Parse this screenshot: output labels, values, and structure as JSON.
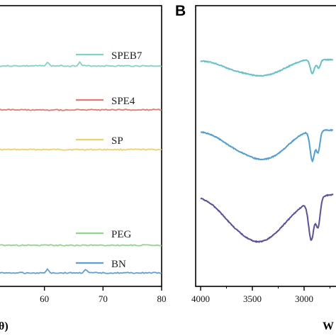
{
  "panel_b_label": "B",
  "axis_title_left_fragment": "θ)",
  "axis_title_right_fragment": "W",
  "colors": {
    "SPEB7": "#7fd3c3",
    "SPE4": "#e07a72",
    "SP": "#f0cf6c",
    "PEG": "#8fd68a",
    "BN": "#5f9fd8",
    "ftir_top": "#66c1c9",
    "ftir_mid": "#4f9fd6",
    "ftir_bottom": "#5a4fa0"
  },
  "chart_data": [
    {
      "type": "line",
      "panel": "A",
      "xlim": [
        50,
        80
      ],
      "x_ticks": [
        "60",
        "70",
        "80"
      ],
      "legend_placement": "right, next to each curve",
      "series": [
        {
          "name": "SPEB7",
          "peaks_2theta": [
            60.5,
            66.0
          ]
        },
        {
          "name": "SPE4",
          "peaks_2theta": []
        },
        {
          "name": "SP",
          "peaks_2theta": []
        },
        {
          "name": "PEG",
          "peaks_2theta": []
        },
        {
          "name": "BN",
          "peaks_2theta": [
            60.5,
            67.0
          ]
        }
      ]
    },
    {
      "type": "line",
      "panel": "B",
      "x_reversed": true,
      "x_ticks": [
        "4000",
        "3500",
        "3000"
      ],
      "series": [
        {
          "key": "ftir_top",
          "bands_cm-1": [
            3450,
            2920,
            2870
          ]
        },
        {
          "key": "ftir_mid",
          "bands_cm-1": [
            3420,
            2920,
            2870
          ]
        },
        {
          "key": "ftir_bottom",
          "bands_cm-1": [
            3440,
            2920,
            2860
          ]
        }
      ]
    }
  ]
}
